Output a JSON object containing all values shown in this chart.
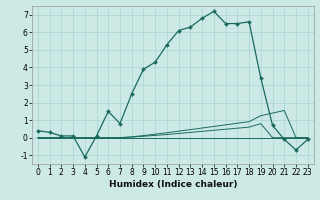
{
  "xlabel": "Humidex (Indice chaleur)",
  "background_color": "#cce9e5",
  "grid_color": "#aed8d4",
  "line_color": "#1a6b5e",
  "xlim": [
    -0.5,
    23.5
  ],
  "ylim": [
    -1.5,
    7.5
  ],
  "yticks": [
    -1,
    0,
    1,
    2,
    3,
    4,
    5,
    6,
    7
  ],
  "xticks": [
    0,
    1,
    2,
    3,
    4,
    5,
    6,
    7,
    8,
    9,
    10,
    11,
    12,
    13,
    14,
    15,
    16,
    17,
    18,
    19,
    20,
    21,
    22,
    23
  ],
  "series1_x": [
    0,
    1,
    2,
    3,
    4,
    5,
    6,
    7,
    8,
    9,
    10,
    11,
    12,
    13,
    14,
    15,
    16,
    17,
    18,
    19,
    20,
    21,
    22,
    23
  ],
  "series1_y": [
    0.4,
    0.3,
    0.1,
    0.1,
    -1.1,
    0.1,
    1.5,
    0.8,
    2.5,
    3.9,
    4.3,
    5.3,
    6.1,
    6.3,
    6.8,
    7.2,
    6.5,
    6.5,
    6.6,
    3.4,
    0.7,
    -0.1,
    -0.7,
    -0.1
  ],
  "series2_y": [
    0.0,
    0.0,
    0.0,
    0.0,
    0.0,
    0.0,
    0.0,
    0.0,
    0.0,
    0.0,
    0.0,
    0.0,
    0.0,
    0.0,
    0.0,
    0.0,
    0.0,
    0.0,
    0.0,
    0.0,
    0.0,
    0.0,
    0.0,
    0.0
  ],
  "series3_y": [
    0.0,
    0.0,
    0.0,
    0.0,
    0.0,
    0.0,
    0.0,
    0.0,
    0.05,
    0.12,
    0.2,
    0.28,
    0.37,
    0.46,
    0.55,
    0.64,
    0.73,
    0.82,
    0.91,
    1.25,
    1.4,
    1.55,
    0.0,
    0.0
  ],
  "series4_y": [
    0.0,
    0.0,
    0.0,
    0.0,
    0.0,
    0.0,
    0.0,
    0.0,
    0.03,
    0.08,
    0.13,
    0.18,
    0.24,
    0.3,
    0.36,
    0.42,
    0.48,
    0.54,
    0.6,
    0.8,
    0.0,
    0.0,
    0.0,
    0.0
  ]
}
